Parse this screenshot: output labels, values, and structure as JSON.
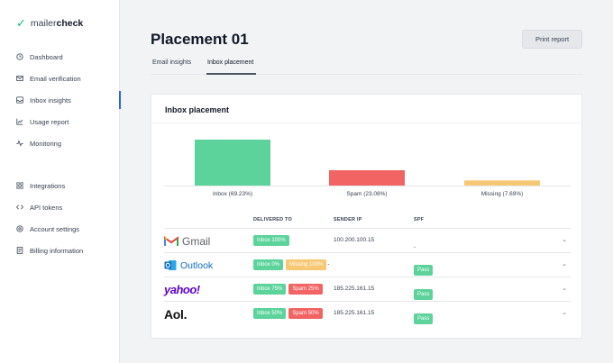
{
  "app": {
    "logo_part1": "mailer",
    "logo_part2": "check"
  },
  "sidebar": {
    "items": [
      {
        "label": "Dashboard",
        "icon": "clock-icon",
        "active": false
      },
      {
        "label": "Email verification",
        "icon": "envelope-icon",
        "active": false
      },
      {
        "label": "Inbox insights",
        "icon": "inbox-icon",
        "active": true
      },
      {
        "label": "Usage report",
        "icon": "chart-line-icon",
        "active": false
      },
      {
        "label": "Monitoring",
        "icon": "pulse-icon",
        "active": false
      },
      {
        "label": "Integrations",
        "icon": "grid-icon",
        "active": false
      },
      {
        "label": "API tokens",
        "icon": "code-icon",
        "active": false
      },
      {
        "label": "Account settings",
        "icon": "gear-icon",
        "active": false
      },
      {
        "label": "Billing information",
        "icon": "receipt-icon",
        "active": false
      }
    ]
  },
  "header": {
    "title": "Placement 01",
    "print_label": "Print report"
  },
  "tabs": [
    {
      "label": "Email insights"
    },
    {
      "label": "Inbox placement"
    }
  ],
  "card": {
    "title": "Inbox placement"
  },
  "chart_data": {
    "type": "bar",
    "categories": [
      "Inbox (69.23%)",
      "Spam (23.08%)",
      "Missing (7.69%)"
    ],
    "values": [
      69.23,
      23.08,
      7.69
    ],
    "colors": [
      "#5cd39b",
      "#f26464",
      "#f7c873"
    ],
    "ylim": [
      0,
      69.23
    ],
    "grid": false,
    "legend": "none",
    "title": "",
    "xlabel": "",
    "ylabel": ""
  },
  "table": {
    "headers": {
      "delivered": "DELIVERED TO",
      "ip": "SENDER IP",
      "spf": "SPF"
    },
    "rows": [
      {
        "provider": "Gmail",
        "badges": [
          {
            "label": "Inbox 100%",
            "type": "inbox"
          }
        ],
        "ip": "100.200.100.15",
        "spf": "-"
      },
      {
        "provider": "Outlook",
        "badges": [
          {
            "label": "Inbox 0%",
            "type": "inbox"
          },
          {
            "label": "Missing 100%",
            "type": "missing"
          }
        ],
        "trailing": "-",
        "ip": "",
        "spf": "Pass"
      },
      {
        "provider": "yahoo!",
        "badges": [
          {
            "label": "Inbox 75%",
            "type": "inbox"
          },
          {
            "label": "Spam 25%",
            "type": "spam"
          }
        ],
        "ip": "185.225.161.15",
        "spf": "Pass"
      },
      {
        "provider": "Aol.",
        "badges": [
          {
            "label": "Inbox 50%",
            "type": "inbox"
          },
          {
            "label": "Spam 50%",
            "type": "spam"
          }
        ],
        "ip": "185.225.161.15",
        "spf": "Pass"
      }
    ]
  }
}
